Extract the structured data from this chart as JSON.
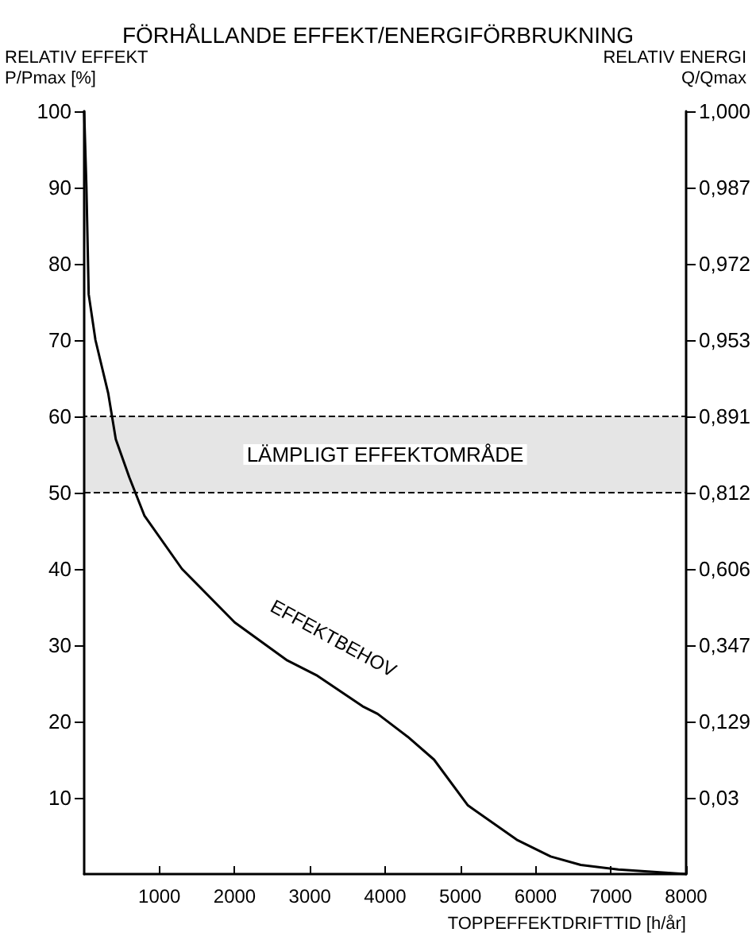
{
  "chart_data": {
    "type": "line",
    "title": "FÖRHÅLLANDE EFFEKT/ENERGIFÖRBRUKNING",
    "xlabel": "TOPPEFFEKTDRIFTTID [h/år]",
    "ylabel": "RELATIV EFFEKT\nP/Pmax [%]",
    "y2label": "RELATIV ENERGI\nQ/Qmax",
    "x": [
      0,
      30,
      60,
      150,
      320,
      420,
      600,
      800,
      1300,
      2000,
      2700,
      3100,
      3700,
      3900,
      4300,
      4650,
      5100,
      5750,
      6200,
      6600,
      7100,
      8000
    ],
    "series": [
      {
        "color": "#000000",
        "values": [
          100,
          90,
          76,
          70,
          63,
          57,
          52,
          47,
          40,
          33,
          28,
          26,
          22,
          21,
          18,
          15,
          9,
          4.5,
          2.3,
          1.2,
          0.6,
          0
        ]
      }
    ],
    "xlim": [
      0,
      8000
    ],
    "xticks": [
      1000,
      2000,
      3000,
      4000,
      5000,
      6000,
      7000,
      8000
    ],
    "ylim": [
      0,
      100
    ],
    "yticks": [
      10,
      20,
      30,
      40,
      50,
      60,
      70,
      80,
      90,
      100
    ],
    "y2_categories": [
      "1,000",
      "0,987",
      "0,972",
      "0,953",
      "0,891",
      "0,812",
      "0,606",
      "0,347",
      "0,129",
      "0,03",
      null
    ],
    "bands": [
      {
        "axis": "y",
        "from": 50,
        "to": 60,
        "label": "LÄMPLIGT EFFEKTOMRÅDE"
      }
    ],
    "annotations": [
      "EFFEKTBEHOV"
    ],
    "grid": false,
    "marker": "none",
    "line_style": "solid"
  }
}
